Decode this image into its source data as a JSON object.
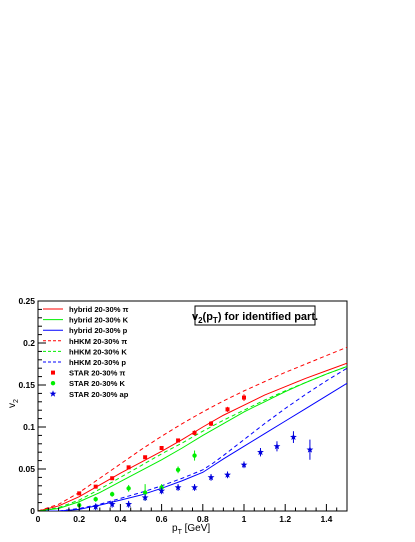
{
  "chart_data": {
    "type": "line",
    "title": "v₂(pₜ) for identified part.",
    "title_parts": {
      "main": "v",
      "sub1": "2",
      "open": "(p",
      "sub2": "T",
      "rest": ") for identified part."
    },
    "xlabel": "p",
    "xlabel_sub": "T",
    "xlabel_unit": " [GeV]",
    "ylabel": "v",
    "ylabel_sub": "2",
    "xlim": [
      0,
      1.5
    ],
    "ylim": [
      0,
      0.25
    ],
    "x_ticks": [
      0,
      0.2,
      0.4,
      0.6,
      0.8,
      1,
      1.2,
      1.4
    ],
    "x_tick_labels": [
      "0",
      "0.2",
      "0.4",
      "0.6",
      "0.8",
      "1",
      "1.2",
      "1.4"
    ],
    "y_ticks": [
      0,
      0.05,
      0.1,
      0.15,
      0.2,
      0.25
    ],
    "y_tick_labels": [
      "0",
      "0.05",
      "0.1",
      "0.15",
      "0.2",
      "0.25"
    ],
    "grid": false,
    "legend_position": "top-left",
    "series": [
      {
        "name": "hybrid 20-30% π",
        "kind": "line",
        "style": "solid",
        "color": "#ff0000",
        "x": [
          0,
          0.1,
          0.2,
          0.3,
          0.4,
          0.5,
          0.6,
          0.7,
          0.8,
          0.9,
          1.0,
          1.1,
          1.2,
          1.3,
          1.4,
          1.5
        ],
        "y": [
          0,
          0.006,
          0.017,
          0.031,
          0.045,
          0.058,
          0.071,
          0.085,
          0.1,
          0.114,
          0.126,
          0.138,
          0.148,
          0.158,
          0.167,
          0.176
        ]
      },
      {
        "name": "hybrid 20-30% K",
        "kind": "line",
        "style": "solid",
        "color": "#00ee00",
        "x": [
          0,
          0.1,
          0.2,
          0.3,
          0.4,
          0.5,
          0.6,
          0.7,
          0.8,
          0.9,
          1.0,
          1.1,
          1.2,
          1.3,
          1.4,
          1.5
        ],
        "y": [
          0,
          0.003,
          0.011,
          0.022,
          0.035,
          0.048,
          0.061,
          0.075,
          0.09,
          0.104,
          0.118,
          0.13,
          0.142,
          0.153,
          0.163,
          0.172
        ]
      },
      {
        "name": "hybrid 20-30% p",
        "kind": "line",
        "style": "solid",
        "color": "#0000ff",
        "x": [
          0,
          0.1,
          0.2,
          0.3,
          0.4,
          0.5,
          0.6,
          0.7,
          0.8,
          0.85,
          0.9,
          1.0,
          1.1,
          1.2,
          1.3,
          1.4,
          1.5
        ],
        "y": [
          0,
          0.0,
          0.002,
          0.007,
          0.013,
          0.019,
          0.027,
          0.036,
          0.046,
          0.054,
          0.062,
          0.077,
          0.092,
          0.107,
          0.122,
          0.137,
          0.152
        ]
      },
      {
        "name": "hHKM 20-30% π",
        "kind": "line",
        "style": "dashed",
        "color": "#ff0000",
        "x": [
          0,
          0.1,
          0.2,
          0.3,
          0.4,
          0.5,
          0.6,
          0.7,
          0.8,
          0.9,
          1.0,
          1.1,
          1.2,
          1.3,
          1.4,
          1.5
        ],
        "y": [
          0,
          0.008,
          0.022,
          0.039,
          0.056,
          0.073,
          0.089,
          0.104,
          0.118,
          0.131,
          0.143,
          0.154,
          0.165,
          0.175,
          0.185,
          0.195
        ]
      },
      {
        "name": "hHKM 20-30% K",
        "kind": "line",
        "style": "dashed",
        "color": "#00ee00",
        "x": [
          0,
          0.1,
          0.2,
          0.3,
          0.4,
          0.5,
          0.6,
          0.7,
          0.8,
          0.9,
          1.0,
          1.1,
          1.2,
          1.3,
          1.4,
          1.5
        ],
        "y": [
          0,
          0.004,
          0.013,
          0.026,
          0.04,
          0.054,
          0.068,
          0.081,
          0.095,
          0.108,
          0.12,
          0.132,
          0.143,
          0.153,
          0.163,
          0.172
        ]
      },
      {
        "name": "hHKM 20-30% p",
        "kind": "line",
        "style": "dashed",
        "color": "#0000ff",
        "x": [
          0,
          0.1,
          0.2,
          0.3,
          0.4,
          0.5,
          0.6,
          0.7,
          0.8,
          0.85,
          0.9,
          1.0,
          1.1,
          1.2,
          1.3,
          1.4,
          1.5
        ],
        "y": [
          0,
          0.0,
          0.003,
          0.008,
          0.015,
          0.022,
          0.03,
          0.039,
          0.049,
          0.057,
          0.066,
          0.085,
          0.104,
          0.122,
          0.139,
          0.155,
          0.17
        ]
      },
      {
        "name": "STAR 20-30% π",
        "kind": "points",
        "marker": "square",
        "color": "#ff0000",
        "x": [
          0.2,
          0.28,
          0.36,
          0.44,
          0.52,
          0.6,
          0.68,
          0.76,
          0.84,
          0.92,
          1.0
        ],
        "y": [
          0.021,
          0.029,
          0.039,
          0.052,
          0.064,
          0.075,
          0.084,
          0.093,
          0.104,
          0.121,
          0.135
        ],
        "err": [
          0.002,
          0.002,
          0.002,
          0.002,
          0.002,
          0.002,
          0.002,
          0.003,
          0.003,
          0.003,
          0.004
        ]
      },
      {
        "name": "STAR 20-30% K",
        "kind": "points",
        "marker": "circle",
        "color": "#00ee00",
        "x": [
          0.2,
          0.28,
          0.36,
          0.44,
          0.52,
          0.6,
          0.68,
          0.76
        ],
        "y": [
          0.007,
          0.014,
          0.02,
          0.027,
          0.022,
          0.028,
          0.049,
          0.066
        ],
        "err": [
          0.003,
          0.003,
          0.003,
          0.004,
          0.01,
          0.004,
          0.004,
          0.006
        ]
      },
      {
        "name": "STAR 20-30% ap",
        "kind": "points",
        "marker": "star",
        "color": "#0000dd",
        "x": [
          0.28,
          0.36,
          0.44,
          0.52,
          0.6,
          0.68,
          0.76,
          0.84,
          0.92,
          1.0,
          1.08,
          1.16,
          1.24,
          1.32
        ],
        "y": [
          0.005,
          0.008,
          0.008,
          0.016,
          0.024,
          0.028,
          0.028,
          0.04,
          0.043,
          0.055,
          0.07,
          0.077,
          0.088,
          0.073
        ],
        "err": [
          0.004,
          0.004,
          0.004,
          0.004,
          0.004,
          0.004,
          0.004,
          0.004,
          0.004,
          0.004,
          0.005,
          0.006,
          0.007,
          0.012
        ]
      }
    ]
  }
}
